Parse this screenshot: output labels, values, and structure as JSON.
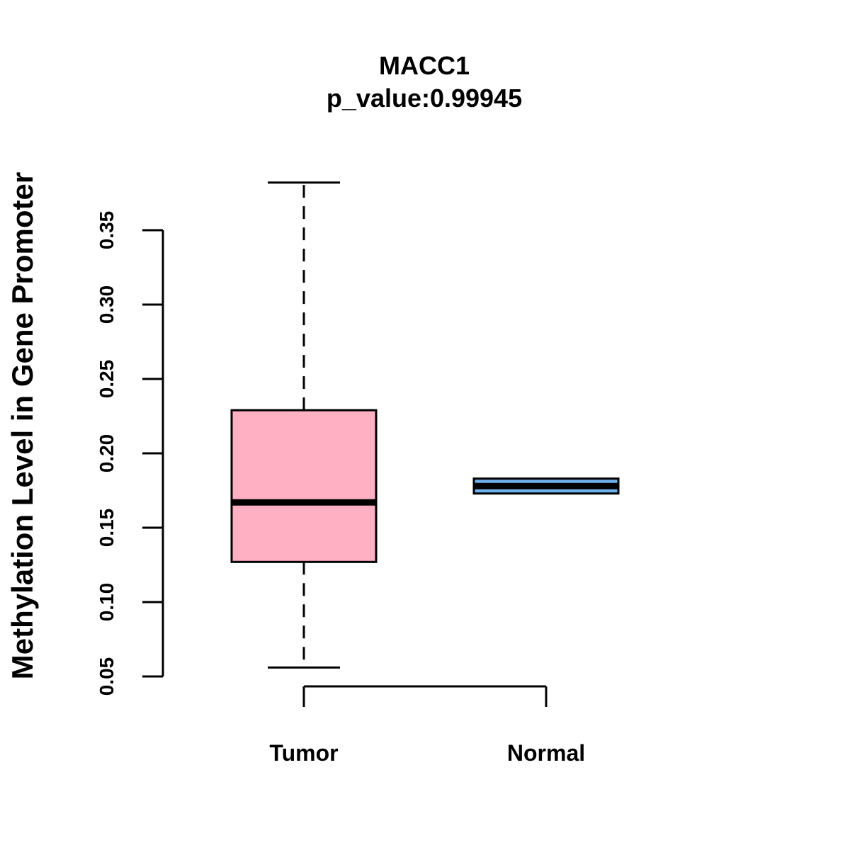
{
  "chart_data": {
    "type": "boxplot",
    "title": "MACC1",
    "subtitle": "p_value:0.99945",
    "xlabel": "",
    "ylabel": "Methylation Level in Gene Promoter",
    "ylim": [
      0.05,
      0.35
    ],
    "yticks": [
      0.05,
      0.1,
      0.15,
      0.2,
      0.25,
      0.3,
      0.35
    ],
    "ytick_labels": [
      "0.05",
      "0.10",
      "0.15",
      "0.20",
      "0.25",
      "0.30",
      "0.35"
    ],
    "categories": [
      "Tumor",
      "Normal"
    ],
    "series": [
      {
        "name": "Tumor",
        "whisker_low": 0.056,
        "q1": 0.127,
        "median": 0.167,
        "q3": 0.229,
        "whisker_high": 0.382,
        "color": "#FFB0C3"
      },
      {
        "name": "Normal",
        "whisker_low": 0.173,
        "q1": 0.173,
        "median": 0.178,
        "q3": 0.183,
        "whisker_high": 0.183,
        "color": "#6FB1EE"
      }
    ],
    "grid": false,
    "legend": "none"
  }
}
